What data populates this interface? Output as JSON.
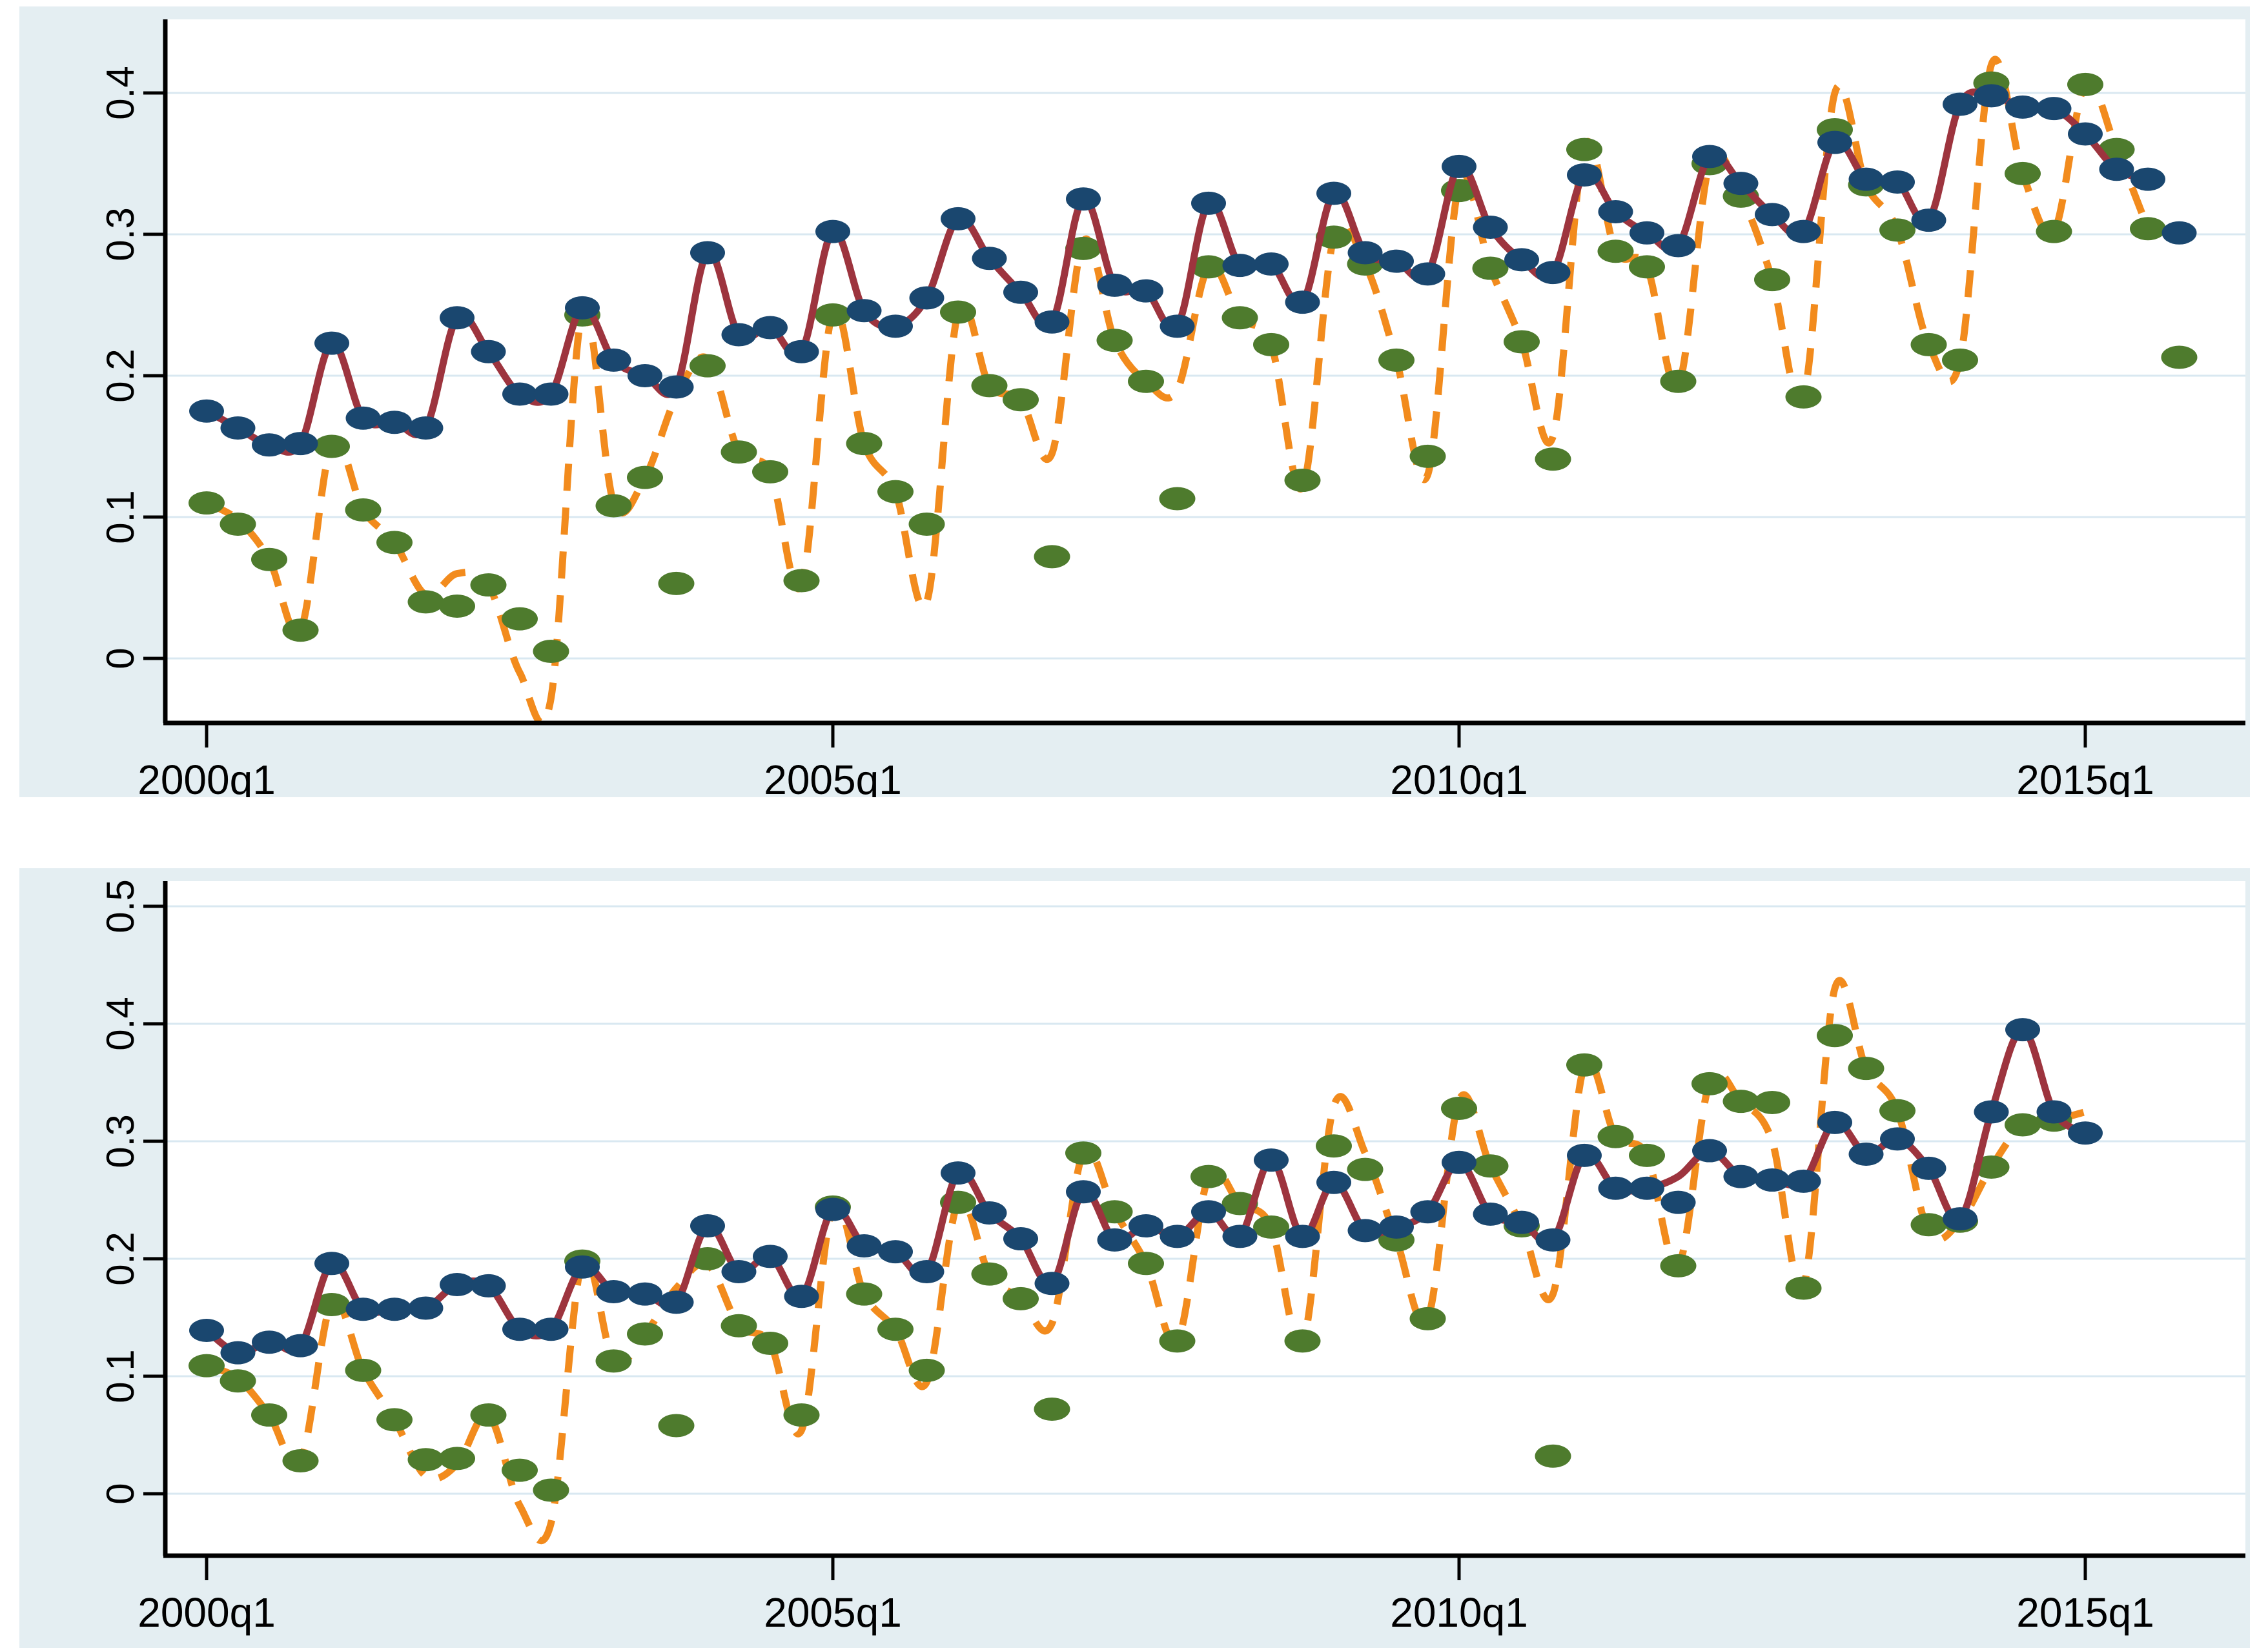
{
  "figure": {
    "background": "#ffffff",
    "panel_background": "#e4eef2",
    "plot_background": "#ffffff",
    "grid_color": "#d9e8f1",
    "axis_color": "#000000",
    "colors": {
      "navy_marker": "#1a476f",
      "red_line": "#9d343e",
      "green_marker": "#4e7b2d",
      "orange_line": "#f28b1d"
    }
  },
  "chart_data": [
    {
      "type": "line+scatter",
      "title": "",
      "xlabel": "",
      "ylabel": "",
      "x_unit": "quarter",
      "x_start": "2000q1",
      "x_tick_labels": [
        "2000q1",
        "2005q1",
        "2010q1",
        "2015q1"
      ],
      "x_tick_quarter_index": [
        0,
        20,
        40,
        60
      ],
      "y_tick_labels": [
        "0",
        "0.1",
        "0.2",
        "0.3",
        "0.4"
      ],
      "y_tick_values": [
        0,
        0.1,
        0.2,
        0.3,
        0.4
      ],
      "ylim": [
        -0.046,
        0.452
      ],
      "grid": true,
      "legend": "none",
      "series": [
        {
          "name": "navy-dots",
          "type": "scatter",
          "color": "#1a476f",
          "values": [
            0.175,
            0.163,
            0.151,
            0.152,
            0.223,
            0.17,
            0.167,
            0.163,
            0.241,
            0.217,
            0.187,
            0.187,
            0.248,
            0.211,
            0.2,
            0.192,
            0.287,
            0.229,
            0.234,
            0.217,
            0.302,
            0.246,
            0.235,
            0.255,
            0.311,
            0.283,
            0.259,
            0.238,
            0.325,
            0.264,
            0.26,
            0.235,
            0.322,
            0.278,
            0.279,
            0.252,
            0.329,
            0.287,
            0.281,
            0.272,
            0.348,
            0.305,
            0.282,
            0.273,
            0.342,
            0.316,
            0.301,
            0.292,
            0.355,
            0.336,
            0.314,
            0.302,
            0.365,
            0.339,
            0.337,
            0.31,
            0.392,
            0.398,
            0.39,
            0.389,
            0.371,
            0.346,
            0.339,
            0.301
          ]
        },
        {
          "name": "red-smooth-line",
          "type": "line",
          "style": "solid",
          "color": "#9d343e",
          "values": [
            0.175,
            0.163,
            0.151,
            0.152,
            0.223,
            0.17,
            0.167,
            0.163,
            0.241,
            0.217,
            0.187,
            0.187,
            0.248,
            0.211,
            0.2,
            0.192,
            0.287,
            0.229,
            0.234,
            0.217,
            0.302,
            0.246,
            0.235,
            0.255,
            0.311,
            0.283,
            0.259,
            0.238,
            0.325,
            0.264,
            0.26,
            0.235,
            0.322,
            0.278,
            0.279,
            0.252,
            0.329,
            0.287,
            0.281,
            0.272,
            0.348,
            0.305,
            0.282,
            0.273,
            0.342,
            0.316,
            0.301,
            0.292,
            0.355,
            0.336,
            0.314,
            0.302,
            0.365,
            0.339,
            0.337,
            0.31,
            0.392,
            0.398,
            0.39,
            0.389,
            0.371,
            0.346,
            0.339,
            null
          ]
        },
        {
          "name": "green-dots",
          "type": "scatter",
          "color": "#4e7b2d",
          "values": [
            0.11,
            0.095,
            0.07,
            0.02,
            0.15,
            0.105,
            0.082,
            0.04,
            0.037,
            0.052,
            0.028,
            0.005,
            0.243,
            0.108,
            0.128,
            0.053,
            0.207,
            0.146,
            0.132,
            0.055,
            0.243,
            0.152,
            0.118,
            0.095,
            0.245,
            0.193,
            0.183,
            0.072,
            0.29,
            0.225,
            0.196,
            0.113,
            0.277,
            0.241,
            0.222,
            0.126,
            0.298,
            0.279,
            0.211,
            0.143,
            0.331,
            0.276,
            0.224,
            0.141,
            0.36,
            0.288,
            0.277,
            0.196,
            0.35,
            0.327,
            0.268,
            0.185,
            0.374,
            0.335,
            0.303,
            0.222,
            0.211,
            0.407,
            0.343,
            0.302,
            0.406,
            0.36,
            0.304,
            0.213
          ]
        },
        {
          "name": "orange-dashed-line",
          "type": "line",
          "style": "dashed",
          "color": "#f28b1d",
          "values": [
            0.11,
            0.098,
            0.07,
            0.02,
            0.152,
            0.105,
            0.082,
            0.045,
            0.06,
            0.052,
            -0.01,
            -0.028,
            0.245,
            0.11,
            0.128,
            0.185,
            0.212,
            0.146,
            0.132,
            0.052,
            0.245,
            0.152,
            0.118,
            0.04,
            0.245,
            0.193,
            0.183,
            0.145,
            0.295,
            0.225,
            0.196,
            0.19,
            0.277,
            0.241,
            0.222,
            0.121,
            0.298,
            0.279,
            0.211,
            0.13,
            0.335,
            0.276,
            0.224,
            0.157,
            0.362,
            0.288,
            0.277,
            0.193,
            0.35,
            0.327,
            0.268,
            0.185,
            0.4,
            0.335,
            0.303,
            0.222,
            0.211,
            0.42,
            0.343,
            0.302,
            0.406,
            0.36,
            0.304,
            null
          ]
        }
      ]
    },
    {
      "type": "line+scatter",
      "title": "",
      "xlabel": "",
      "ylabel": "",
      "x_unit": "quarter",
      "x_start": "2000q1",
      "x_tick_labels": [
        "2000q1",
        "2005q1",
        "2010q1",
        "2015q1"
      ],
      "x_tick_quarter_index": [
        0,
        20,
        40,
        60
      ],
      "y_tick_labels": [
        "0",
        "0.1",
        "0.2",
        "0.3",
        "0.4",
        "0.5"
      ],
      "y_tick_values": [
        0,
        0.1,
        0.2,
        0.3,
        0.4,
        0.5
      ],
      "ylim": [
        -0.053,
        0.521
      ],
      "grid": true,
      "legend": "none",
      "series": [
        {
          "name": "navy-dots",
          "type": "scatter",
          "color": "#1a476f",
          "values": [
            0.139,
            0.12,
            0.129,
            0.126,
            0.196,
            0.157,
            0.157,
            0.158,
            0.178,
            0.177,
            0.14,
            0.14,
            0.193,
            0.172,
            0.17,
            0.163,
            0.228,
            0.189,
            0.202,
            0.168,
            0.242,
            0.211,
            0.206,
            0.189,
            0.273,
            0.239,
            0.217,
            0.179,
            0.257,
            0.216,
            0.228,
            0.219,
            0.24,
            0.219,
            0.284,
            0.219,
            0.265,
            0.224,
            0.227,
            0.24,
            0.282,
            0.238,
            0.231,
            0.216,
            0.288,
            0.26,
            0.26,
            0.248,
            0.292,
            0.27,
            0.267,
            0.266,
            0.316,
            0.289,
            0.302,
            0.277,
            0.234,
            0.325,
            0.395,
            0.325,
            0.307
          ]
        },
        {
          "name": "red-smooth-line",
          "type": "line",
          "style": "solid",
          "color": "#9d343e",
          "values": [
            0.139,
            0.12,
            0.129,
            0.126,
            0.196,
            0.157,
            0.157,
            0.158,
            0.178,
            0.177,
            0.14,
            0.14,
            0.193,
            0.172,
            0.17,
            0.163,
            0.228,
            0.189,
            0.202,
            0.168,
            0.242,
            0.211,
            0.206,
            0.189,
            0.273,
            0.239,
            0.217,
            0.179,
            0.257,
            0.216,
            0.228,
            0.219,
            0.24,
            0.219,
            0.284,
            0.219,
            0.265,
            0.224,
            0.227,
            0.24,
            0.282,
            0.238,
            0.231,
            0.216,
            0.288,
            0.26,
            0.26,
            0.27,
            0.292,
            0.27,
            0.267,
            0.266,
            0.316,
            0.289,
            0.302,
            0.277,
            0.234,
            0.325,
            0.395,
            0.325,
            0.307
          ]
        },
        {
          "name": "green-dots",
          "type": "scatter",
          "color": "#4e7b2d",
          "values": [
            0.109,
            0.096,
            0.067,
            0.028,
            0.161,
            0.105,
            0.063,
            0.029,
            0.03,
            0.067,
            0.02,
            0.003,
            0.198,
            0.113,
            0.136,
            0.058,
            0.2,
            0.143,
            0.128,
            0.067,
            0.244,
            0.17,
            0.14,
            0.105,
            0.248,
            0.187,
            0.166,
            0.072,
            0.29,
            0.24,
            0.196,
            0.13,
            0.27,
            0.247,
            0.227,
            0.13,
            0.296,
            0.276,
            0.216,
            0.149,
            0.328,
            0.279,
            0.228,
            0.032,
            0.365,
            0.304,
            0.288,
            0.194,
            0.349,
            0.334,
            0.333,
            0.175,
            0.39,
            0.362,
            0.326,
            0.229,
            0.232,
            0.278,
            0.314,
            0.318,
            null
          ]
        },
        {
          "name": "orange-dashed-line",
          "type": "line",
          "style": "dashed",
          "color": "#f28b1d",
          "values": [
            0.109,
            0.098,
            0.067,
            0.028,
            0.163,
            0.105,
            0.063,
            0.015,
            0.025,
            0.067,
            -0.01,
            -0.025,
            0.198,
            0.113,
            0.136,
            0.175,
            0.195,
            0.143,
            0.128,
            0.054,
            0.244,
            0.17,
            0.14,
            0.095,
            0.248,
            0.187,
            0.166,
            0.145,
            0.29,
            0.24,
            0.196,
            0.13,
            0.27,
            0.247,
            0.227,
            0.128,
            0.33,
            0.29,
            0.216,
            0.149,
            0.335,
            0.279,
            0.228,
            0.17,
            0.364,
            0.304,
            0.288,
            0.194,
            0.35,
            0.334,
            0.3,
            0.177,
            0.43,
            0.362,
            0.326,
            0.223,
            0.232,
            0.278,
            0.314,
            0.318,
            0.325
          ]
        }
      ]
    }
  ]
}
